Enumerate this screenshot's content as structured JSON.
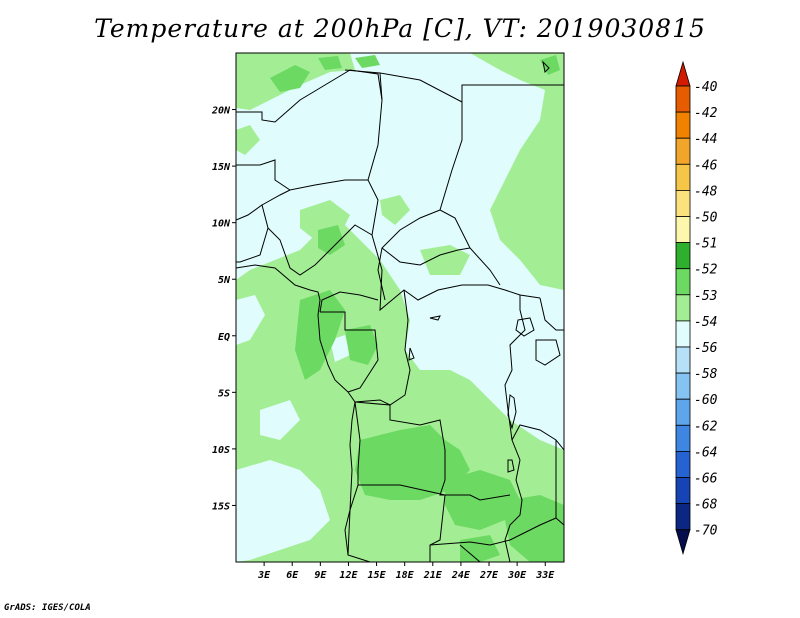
{
  "title": "Temperature at 200hPa [C], VT: 2019030815",
  "credit": "GrADS: IGES/COLA",
  "map": {
    "lon_range": [
      0,
      35
    ],
    "lat_range": [
      -20,
      25
    ],
    "x_tick_labels": [
      "3E",
      "6E",
      "9E",
      "12E",
      "15E",
      "18E",
      "21E",
      "24E",
      "27E",
      "30E",
      "33E"
    ],
    "y_tick_labels": [
      "20N",
      "15N",
      "10N",
      "5N",
      "EQ",
      "5S",
      "10S",
      "15S"
    ]
  },
  "colorbar": {
    "labels": [
      "-40",
      "-42",
      "-44",
      "-46",
      "-48",
      "-50",
      "-51",
      "-52",
      "-53",
      "-54",
      "-56",
      "-58",
      "-60",
      "-62",
      "-64",
      "-66",
      "-68",
      "-70"
    ],
    "colors": [
      "#d11a00",
      "#e65c00",
      "#f08200",
      "#f2a52b",
      "#f6c648",
      "#fbe27c",
      "#fcf7ad",
      "#2eaf2e",
      "#6cd963",
      "#a3ee94",
      "#e0fcfc",
      "#b5e0f7",
      "#85c3f2",
      "#5ea5ec",
      "#3f86e2",
      "#2662d1",
      "#1744b5",
      "#0c2684",
      "#050d4d"
    ],
    "selected_colors": {
      "-52_to_-51": "#6cd963",
      "-53_to_-52": "#a3ee94",
      "-54_to_-53": "#e0fcfc"
    }
  }
}
